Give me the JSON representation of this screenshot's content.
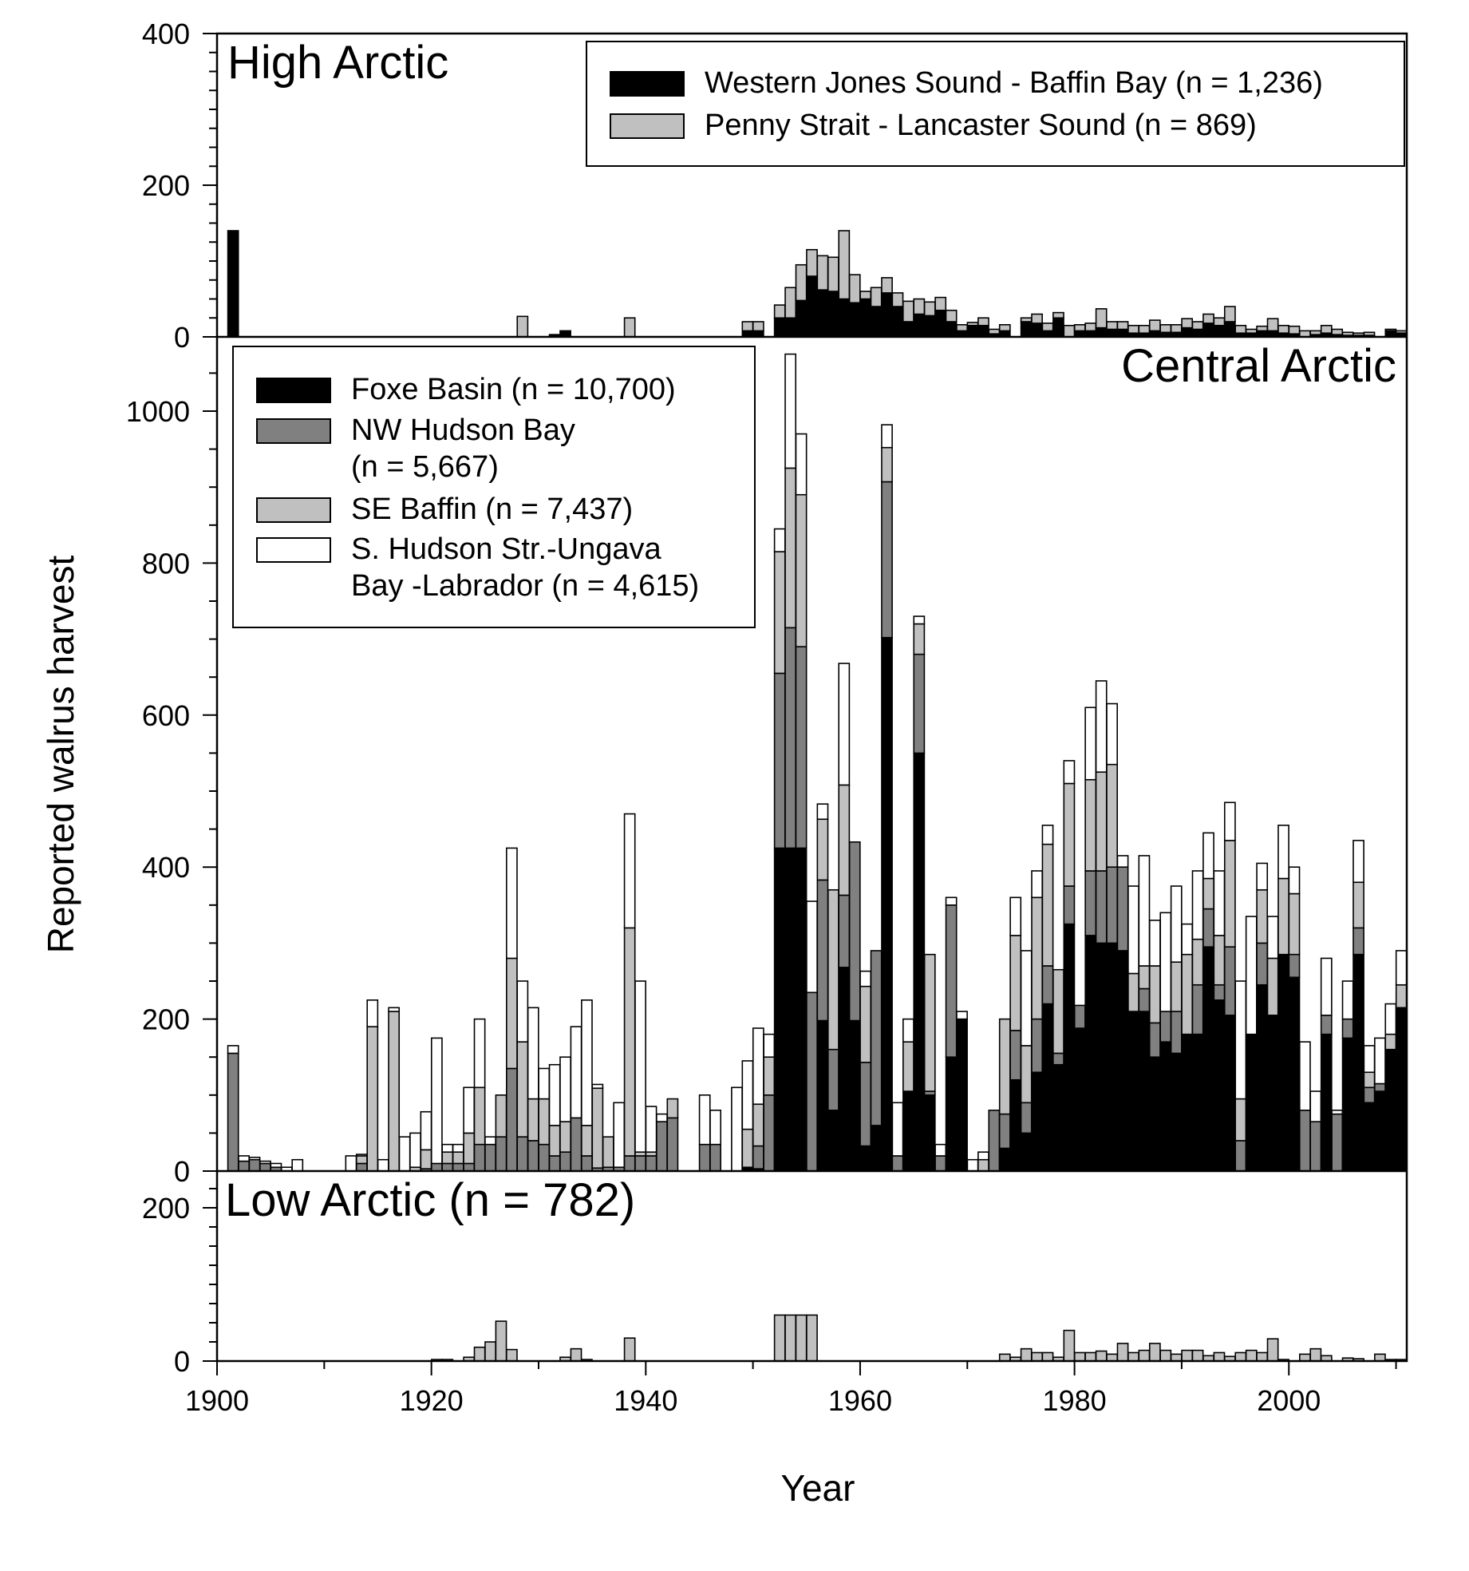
{
  "colors": {
    "black": "#000000",
    "dark_gray": "#808080",
    "light_gray": "#c0c0c0",
    "white": "#ffffff"
  },
  "chart_data": {
    "type": "bar",
    "stacked": true,
    "xlabel": "Year",
    "ylabel": "Reported walrus harvest",
    "xlim": [
      1900,
      2011
    ],
    "x_ticks": [
      "1900",
      "1920",
      "1940",
      "1960",
      "1980",
      "2000"
    ],
    "panels": [
      {
        "id": "high",
        "title": "High Arctic",
        "ylim": [
          0,
          400
        ],
        "y_ticks": [
          0,
          200,
          400
        ],
        "legend_position": "top-right",
        "series": [
          {
            "name": "Western Jones Sound - Baffin Bay (n = 1,236)",
            "color": "#000000",
            "data": {
              "1901": 140,
              "1931": 3,
              "1932": 8,
              "1949": 8,
              "1950": 8,
              "1952": 25,
              "1953": 25,
              "1954": 48,
              "1955": 80,
              "1956": 62,
              "1957": 60,
              "1958": 50,
              "1959": 45,
              "1960": 50,
              "1961": 40,
              "1962": 58,
              "1963": 40,
              "1964": 20,
              "1965": 30,
              "1966": 28,
              "1967": 35,
              "1968": 20,
              "1969": 8,
              "1970": 15,
              "1971": 15,
              "1972": 4,
              "1973": 8,
              "1975": 20,
              "1976": 18,
              "1977": 8,
              "1978": 25,
              "1980": 8,
              "1981": 8,
              "1982": 12,
              "1983": 10,
              "1984": 10,
              "1985": 5,
              "1986": 5,
              "1987": 8,
              "1988": 6,
              "1989": 6,
              "1990": 12,
              "1991": 10,
              "1992": 18,
              "1993": 15,
              "1994": 20,
              "1995": 5,
              "1996": 5,
              "1997": 8,
              "1998": 8,
              "1999": 5,
              "2000": 4,
              "2002": 3,
              "2003": 5,
              "2004": 3,
              "2005": 2,
              "2006": 2,
              "2007": 2,
              "2009": 8,
              "2010": 5
            }
          },
          {
            "name": "Penny Strait - Lancaster Sound (n = 869)",
            "color": "#c0c0c0",
            "data": {
              "1928": 27,
              "1938": 25,
              "1949": 12,
              "1950": 12,
              "1952": 17,
              "1953": 40,
              "1954": 47,
              "1955": 35,
              "1956": 45,
              "1957": 45,
              "1958": 90,
              "1959": 37,
              "1960": 10,
              "1961": 25,
              "1962": 20,
              "1963": 18,
              "1964": 27,
              "1965": 20,
              "1966": 18,
              "1967": 17,
              "1968": 15,
              "1969": 8,
              "1970": 4,
              "1971": 10,
              "1972": 6,
              "1973": 8,
              "1975": 5,
              "1976": 12,
              "1977": 10,
              "1978": 7,
              "1979": 15,
              "1980": 8,
              "1981": 10,
              "1982": 25,
              "1983": 10,
              "1984": 10,
              "1985": 10,
              "1986": 10,
              "1987": 14,
              "1988": 10,
              "1989": 10,
              "1990": 12,
              "1991": 10,
              "1992": 12,
              "1993": 10,
              "1994": 20,
              "1995": 10,
              "1996": 5,
              "1997": 6,
              "1998": 16,
              "1999": 10,
              "2000": 10,
              "2001": 8,
              "2002": 5,
              "2003": 10,
              "2004": 7,
              "2005": 4,
              "2006": 3,
              "2007": 4,
              "2009": 2,
              "2010": 3
            }
          }
        ]
      },
      {
        "id": "central",
        "title": "Central Arctic",
        "ylim": [
          0,
          1100
        ],
        "y_ticks": [
          0,
          200,
          400,
          600,
          800,
          1000
        ],
        "legend_position": "top-left",
        "series": [
          {
            "name": "Foxe Basin (n = 10,700)",
            "color": "#000000",
            "data": {
              "1949": 5,
              "1950": 3,
              "1951": 0,
              "1952": 425,
              "1953": 425,
              "1954": 425,
              "1955": 0,
              "1956": 198,
              "1957": 80,
              "1958": 268,
              "1959": 198,
              "1960": 33,
              "1961": 60,
              "1962": 702,
              "1963": 0,
              "1964": 105,
              "1965": 550,
              "1966": 100,
              "1967": 0,
              "1968": 150,
              "1969": 200,
              "1972": 0,
              "1973": 30,
              "1974": 120,
              "1975": 50,
              "1976": 130,
              "1977": 220,
              "1978": 140,
              "1979": 325,
              "1980": 188,
              "1981": 310,
              "1982": 300,
              "1983": 300,
              "1984": 290,
              "1985": 210,
              "1986": 210,
              "1987": 150,
              "1988": 170,
              "1989": 155,
              "1990": 180,
              "1991": 180,
              "1992": 295,
              "1993": 225,
              "1994": 205,
              "1995": 0,
              "1996": 180,
              "1997": 245,
              "1998": 205,
              "1999": 285,
              "2000": 255,
              "2001": 0,
              "2002": 0,
              "2003": 180,
              "2004": 0,
              "2005": 175,
              "2006": 285,
              "2007": 90,
              "2008": 105,
              "2009": 160,
              "2010": 215
            }
          },
          {
            "name": "NW Hudson Bay\n(n = 5,667)",
            "color": "#808080",
            "data": {
              "1901": 155,
              "1902": 13,
              "1903": 15,
              "1904": 10,
              "1905": 5,
              "1913": 10,
              "1919": 3,
              "1920": 10,
              "1921": 10,
              "1922": 10,
              "1923": 10,
              "1924": 35,
              "1925": 35,
              "1926": 45,
              "1927": 135,
              "1928": 45,
              "1929": 40,
              "1930": 35,
              "1931": 20,
              "1932": 25,
              "1933": 70,
              "1934": 20,
              "1935": 4,
              "1936": 5,
              "1937": 5,
              "1938": 20,
              "1939": 20,
              "1940": 20,
              "1941": 65,
              "1942": 70,
              "1945": 35,
              "1946": 35,
              "1949": 0,
              "1950": 30,
              "1951": 100,
              "1952": 230,
              "1953": 290,
              "1954": 265,
              "1955": 235,
              "1956": 185,
              "1957": 80,
              "1958": 95,
              "1959": 235,
              "1960": 110,
              "1961": 230,
              "1962": 205,
              "1963": 20,
              "1964": 0,
              "1965": 130,
              "1966": 5,
              "1967": 20,
              "1968": 200,
              "1969": 0,
              "1970": 0,
              "1972": 80,
              "1973": 45,
              "1974": 65,
              "1975": 40,
              "1976": 70,
              "1977": 50,
              "1978": 15,
              "1979": 50,
              "1980": 30,
              "1981": 85,
              "1982": 95,
              "1983": 100,
              "1984": 110,
              "1985": 0,
              "1986": 30,
              "1987": 45,
              "1988": 40,
              "1989": 55,
              "1990": 0,
              "1991": 65,
              "1992": 50,
              "1993": 20,
              "1994": 90,
              "1995": 40,
              "1996": 0,
              "1997": 55,
              "1998": 0,
              "1999": 0,
              "2000": 30,
              "2001": 80,
              "2002": 65,
              "2003": 25,
              "2004": 75,
              "2005": 25,
              "2006": 35,
              "2007": 20,
              "2008": 10,
              "2009": 0,
              "2010": 0
            }
          },
          {
            "name": "SE Baffin (n = 7,437)",
            "color": "#c0c0c0",
            "data": {
              "1901": 0,
              "1913": 10,
              "1914": 190,
              "1915": 0,
              "1916": 210,
              "1917": 0,
              "1918": 5,
              "1919": 25,
              "1920": 0,
              "1921": 15,
              "1922": 15,
              "1923": 40,
              "1924": 75,
              "1926": 55,
              "1927": 145,
              "1928": 125,
              "1929": 55,
              "1930": 60,
              "1931": 40,
              "1932": 40,
              "1933": 0,
              "1934": 40,
              "1935": 105,
              "1936": 40,
              "1937": 0,
              "1938": 300,
              "1939": 5,
              "1940": 5,
              "1941": 0,
              "1942": 25,
              "1945": 0,
              "1948": 0,
              "1949": 50,
              "1950": 55,
              "1951": 50,
              "1952": 160,
              "1953": 210,
              "1954": 200,
              "1955": 0,
              "1956": 80,
              "1957": 210,
              "1958": 145,
              "1959": 0,
              "1960": 100,
              "1961": 0,
              "1962": 45,
              "1963": 0,
              "1964": 65,
              "1965": 40,
              "1966": 180,
              "1967": 0,
              "1968": 0,
              "1969": 0,
              "1970": 0,
              "1971": 15,
              "1972": 0,
              "1973": 125,
              "1974": 125,
              "1975": 75,
              "1976": 160,
              "1977": 160,
              "1978": 110,
              "1979": 135,
              "1980": 0,
              "1981": 120,
              "1982": 130,
              "1983": 135,
              "1984": 0,
              "1985": 50,
              "1986": 30,
              "1987": 75,
              "1988": 0,
              "1989": 65,
              "1990": 105,
              "1991": 60,
              "1992": 40,
              "1993": 65,
              "1994": 140,
              "1995": 55,
              "1996": 0,
              "1997": 70,
              "1998": 75,
              "1999": 100,
              "2000": 80,
              "2001": 0,
              "2002": 0,
              "2003": 0,
              "2004": 0,
              "2005": 0,
              "2006": 60,
              "2007": 20,
              "2008": 0,
              "2009": 20,
              "2010": 30
            }
          },
          {
            "name": "S. Hudson Str.-Ungava\nBay -Labrador (n = 4,615)",
            "color": "#ffffff",
            "data": {
              "1901": 10,
              "1902": 7,
              "1903": 3,
              "1904": 3,
              "1905": 5,
              "1906": 5,
              "1907": 15,
              "1912": 20,
              "1913": 2,
              "1914": 35,
              "1915": 15,
              "1916": 5,
              "1917": 45,
              "1918": 45,
              "1919": 50,
              "1920": 165,
              "1921": 10,
              "1922": 10,
              "1923": 60,
              "1924": 90,
              "1925": 10,
              "1926": 0,
              "1927": 145,
              "1928": 80,
              "1929": 120,
              "1930": 40,
              "1931": 80,
              "1932": 85,
              "1933": 120,
              "1934": 165,
              "1935": 5,
              "1936": 0,
              "1937": 85,
              "1938": 150,
              "1939": 225,
              "1940": 60,
              "1941": 10,
              "1942": 0,
              "1945": 65,
              "1946": 45,
              "1948": 110,
              "1949": 90,
              "1950": 100,
              "1951": 30,
              "1952": 30,
              "1953": 150,
              "1954": 80,
              "1955": 120,
              "1956": 20,
              "1957": 0,
              "1958": 160,
              "1959": 0,
              "1960": 20,
              "1961": 0,
              "1962": 30,
              "1963": 70,
              "1964": 30,
              "1965": 10,
              "1966": 0,
              "1967": 15,
              "1968": 10,
              "1969": 10,
              "1970": 15,
              "1971": 10,
              "1972": 0,
              "1973": 0,
              "1974": 50,
              "1975": 125,
              "1976": 35,
              "1977": 25,
              "1978": 0,
              "1979": 30,
              "1980": 0,
              "1981": 95,
              "1982": 120,
              "1983": 80,
              "1984": 15,
              "1985": 115,
              "1986": 145,
              "1987": 60,
              "1988": 130,
              "1989": 100,
              "1990": 40,
              "1991": 90,
              "1992": 60,
              "1993": 85,
              "1994": 50,
              "1995": 155,
              "1996": 155,
              "1997": 35,
              "1998": 55,
              "1999": 70,
              "2000": 35,
              "2001": 90,
              "2002": 40,
              "2003": 75,
              "2004": 5,
              "2005": 50,
              "2006": 55,
              "2007": 35,
              "2008": 60,
              "2009": 40,
              "2010": 45
            }
          }
        ]
      },
      {
        "id": "low",
        "title": "Low Arctic (n = 782)",
        "ylim": [
          0,
          250
        ],
        "y_ticks": [
          0,
          200
        ],
        "series": [
          {
            "name": "Low Arctic",
            "color": "#c0c0c0",
            "data": {
              "1920": 2,
              "1921": 2,
              "1923": 5,
              "1924": 18,
              "1925": 25,
              "1926": 52,
              "1927": 15,
              "1932": 5,
              "1933": 16,
              "1934": 2,
              "1938": 30,
              "1952": 60,
              "1953": 60,
              "1954": 60,
              "1955": 60,
              "1973": 9,
              "1974": 5,
              "1975": 16,
              "1976": 11,
              "1977": 11,
              "1978": 5,
              "1979": 40,
              "1980": 11,
              "1981": 11,
              "1982": 13,
              "1983": 9,
              "1984": 23,
              "1985": 11,
              "1986": 14,
              "1987": 23,
              "1988": 14,
              "1989": 9,
              "1990": 14,
              "1991": 14,
              "1992": 7,
              "1993": 11,
              "1994": 6,
              "1995": 11,
              "1996": 14,
              "1997": 11,
              "1998": 29,
              "1999": 2,
              "2001": 9,
              "2002": 16,
              "2003": 7,
              "2005": 4,
              "2006": 3,
              "2008": 9,
              "2009": 2,
              "2010": 2
            }
          }
        ]
      }
    ]
  }
}
